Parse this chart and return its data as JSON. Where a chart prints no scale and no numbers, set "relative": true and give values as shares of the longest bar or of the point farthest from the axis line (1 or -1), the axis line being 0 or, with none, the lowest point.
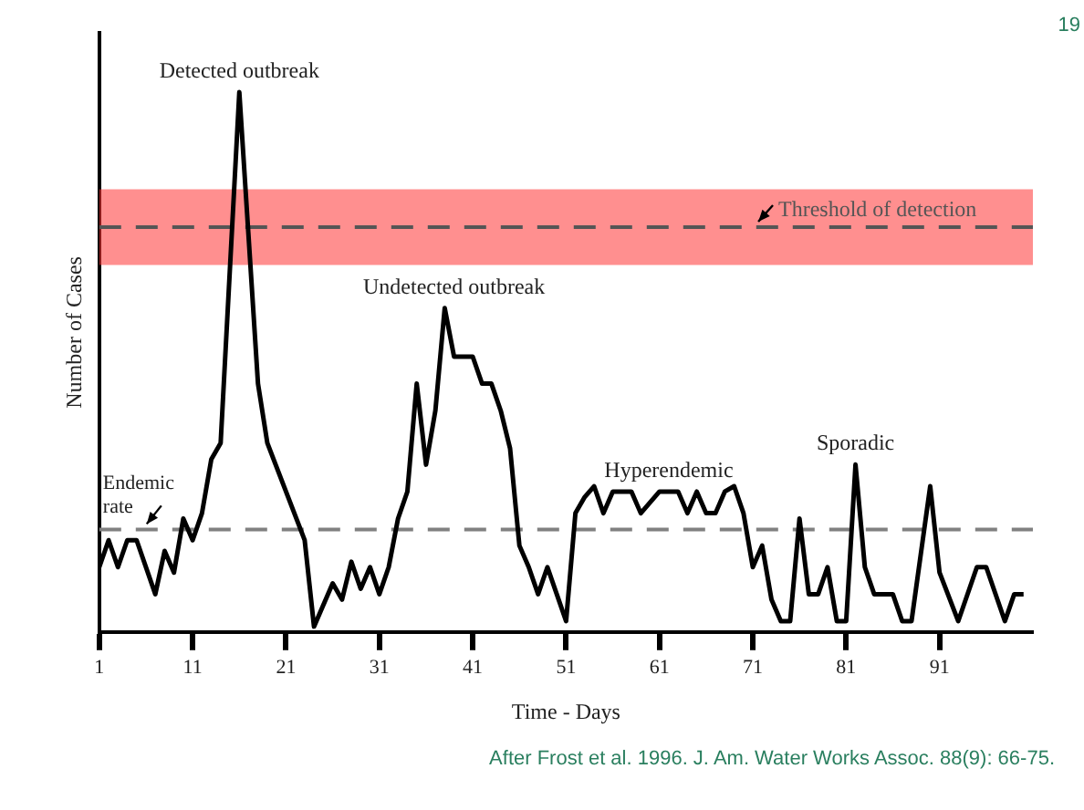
{
  "chart_data": {
    "type": "line",
    "relative": true,
    "xlabel": "Time - Days",
    "ylabel": "Number of Cases",
    "xlim": [
      1,
      101
    ],
    "xticks": [
      1,
      11,
      21,
      31,
      41,
      51,
      61,
      71,
      81,
      91
    ],
    "grid": false,
    "legend": false,
    "line_style": "solid",
    "series": [
      {
        "color": "#000000",
        "x": [
          1,
          2,
          3,
          4,
          5,
          7,
          8,
          9,
          10,
          11,
          12,
          13,
          14,
          16,
          18,
          19,
          23,
          24,
          26,
          27,
          28,
          29,
          30,
          31,
          32,
          33,
          34,
          35,
          36,
          37,
          38,
          39,
          41,
          42,
          43,
          44,
          45,
          46,
          47,
          48,
          49,
          50,
          51,
          52,
          53,
          54,
          55,
          56,
          58,
          59,
          61,
          63,
          64,
          65,
          66,
          67,
          68,
          69,
          70,
          71,
          72,
          73,
          74,
          75,
          76,
          77,
          78,
          79,
          80,
          81,
          82,
          83,
          84,
          86,
          87,
          88,
          90,
          91,
          93,
          95,
          96,
          98,
          99,
          100
        ],
        "values": [
          0.12,
          0.17,
          0.12,
          0.17,
          0.17,
          0.07,
          0.15,
          0.11,
          0.21,
          0.17,
          0.22,
          0.32,
          0.35,
          1.0,
          0.46,
          0.35,
          0.17,
          0.01,
          0.09,
          0.06,
          0.13,
          0.08,
          0.12,
          0.07,
          0.12,
          0.21,
          0.26,
          0.46,
          0.31,
          0.41,
          0.6,
          0.51,
          0.51,
          0.46,
          0.46,
          0.41,
          0.34,
          0.16,
          0.12,
          0.07,
          0.12,
          0.07,
          0.02,
          0.22,
          0.25,
          0.27,
          0.22,
          0.26,
          0.26,
          0.22,
          0.26,
          0.26,
          0.22,
          0.26,
          0.22,
          0.22,
          0.26,
          0.27,
          0.22,
          0.12,
          0.16,
          0.06,
          0.02,
          0.02,
          0.21,
          0.07,
          0.07,
          0.12,
          0.02,
          0.02,
          0.31,
          0.12,
          0.07,
          0.07,
          0.02,
          0.02,
          0.27,
          0.11,
          0.02,
          0.12,
          0.12,
          0.02,
          0.07,
          0.07
        ]
      }
    ],
    "bands": [
      {
        "axis": "y",
        "from": 0.68,
        "to": 0.82,
        "color": "#ff3333"
      }
    ],
    "ref_lines": [
      {
        "axis": "y",
        "value": 0.19,
        "label": "Endemic rate",
        "color": "#808080",
        "line_style": "dashed"
      },
      {
        "axis": "y",
        "value": 0.75,
        "label": "Threshold of detection",
        "color": "#555555",
        "line_style": "dashed"
      }
    ],
    "annotations": [
      {
        "text": "Detected outbreak",
        "x": 16,
        "y": 1.0
      },
      {
        "text": "Undetected outbreak",
        "x": 39,
        "y": 0.6
      },
      {
        "text": "Hyperendemic",
        "x": 62,
        "y": 0.26
      },
      {
        "text": "Sporadic",
        "x": 82,
        "y": 0.31
      },
      "19",
      "After Frost et al. 1996. J. Am. Water Works Assoc. 88(9): 66-75."
    ]
  }
}
